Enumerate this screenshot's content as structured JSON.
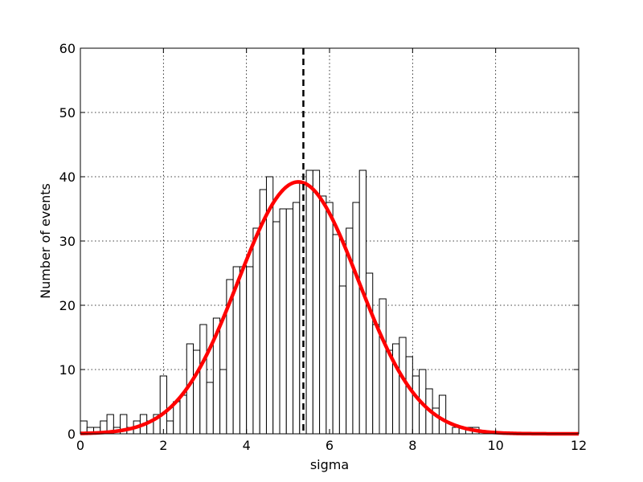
{
  "chart_data": {
    "type": "bar",
    "xlabel": "sigma",
    "ylabel": "Number of events",
    "xlim": [
      0,
      12
    ],
    "ylim": [
      0,
      60
    ],
    "x_ticks": [
      "0",
      "2",
      "4",
      "6",
      "8",
      "10",
      "12"
    ],
    "y_ticks": [
      "0",
      "10",
      "20",
      "30",
      "40",
      "50",
      "60"
    ],
    "grid": true,
    "bin_width": 0.16,
    "bins_start": 0,
    "histogram_counts": [
      2,
      1,
      1,
      2,
      3,
      1,
      3,
      1,
      2,
      3,
      2,
      3,
      9,
      2,
      5,
      6,
      14,
      13,
      17,
      8,
      18,
      10,
      24,
      26,
      26,
      26,
      32,
      38,
      40,
      33,
      35,
      35,
      36,
      39,
      41,
      41,
      37,
      36,
      31,
      23,
      32,
      36,
      41,
      25,
      17,
      21,
      13,
      14,
      15,
      12,
      9,
      10,
      7,
      4,
      6,
      0,
      1,
      1,
      1,
      1
    ],
    "fit_curve": {
      "type": "gaussian",
      "amplitude": 39.2,
      "mean": 5.25,
      "sigma": 1.45,
      "color": "#ff0000"
    },
    "vertical_marker": {
      "x": 5.37,
      "style": "dashed",
      "color": "#000000"
    },
    "bar_fill": "#ffffff",
    "bar_stroke": "#000000"
  }
}
